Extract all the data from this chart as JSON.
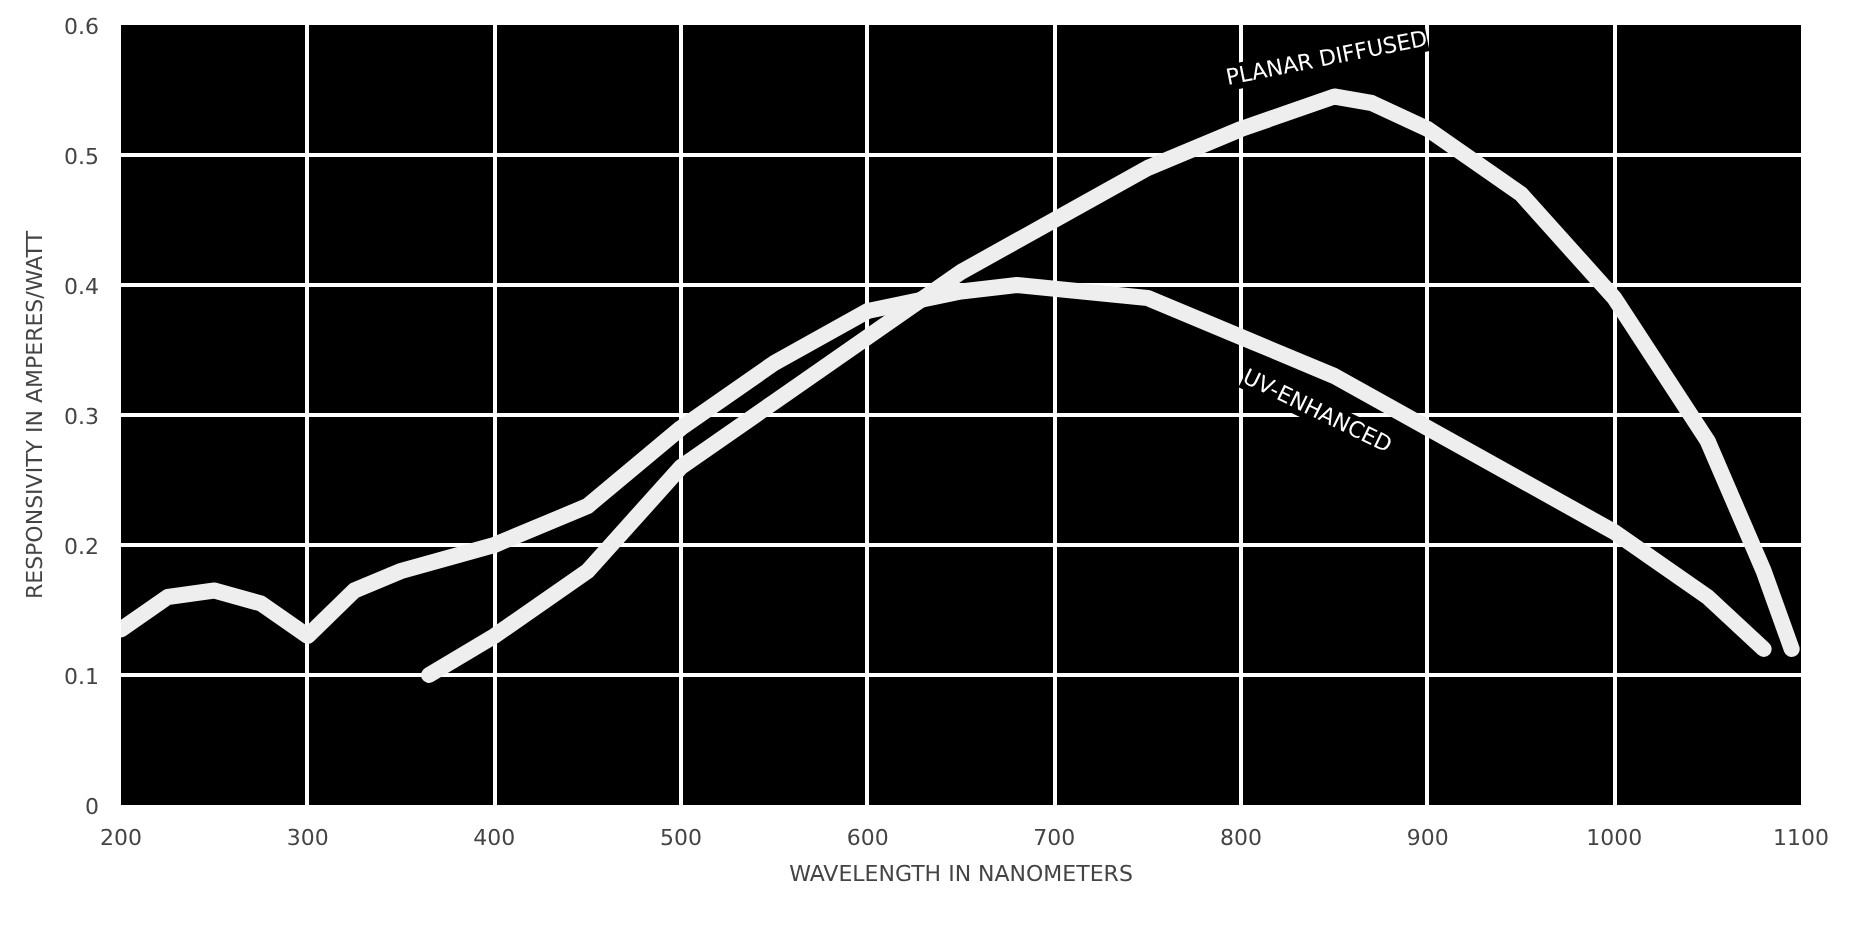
{
  "chart_data": {
    "type": "line",
    "xlabel": "WAVELENGTH IN NANOMETERS",
    "ylabel": "RESPONSIVITY IN AMPERES/WATT",
    "xlim": [
      200,
      1100
    ],
    "ylim": [
      0,
      0.6
    ],
    "xticks": [
      200,
      300,
      400,
      500,
      600,
      700,
      800,
      900,
      1000,
      1100
    ],
    "yticks": [
      0,
      0.1,
      0.2,
      0.3,
      0.4,
      0.5,
      0.6
    ],
    "grid": true,
    "series": [
      {
        "name": "UV-ENHANCED",
        "color": "#eeeeee",
        "x": [
          200,
          225,
          250,
          275,
          300,
          325,
          350,
          400,
          450,
          500,
          550,
          600,
          650,
          680,
          750,
          800,
          850,
          900,
          950,
          1000,
          1050,
          1080
        ],
        "values": [
          0.135,
          0.16,
          0.165,
          0.155,
          0.13,
          0.165,
          0.18,
          0.2,
          0.23,
          0.29,
          0.34,
          0.38,
          0.395,
          0.4,
          0.39,
          0.36,
          0.33,
          0.29,
          0.25,
          0.21,
          0.16,
          0.12
        ]
      },
      {
        "name": "PLANAR DIFFUSED",
        "color": "#eeeeee",
        "x": [
          365,
          400,
          450,
          500,
          550,
          600,
          650,
          700,
          750,
          800,
          850,
          870,
          900,
          950,
          1000,
          1050,
          1080,
          1095
        ],
        "values": [
          0.1,
          0.13,
          0.18,
          0.26,
          0.31,
          0.36,
          0.41,
          0.45,
          0.49,
          0.52,
          0.545,
          0.54,
          0.52,
          0.47,
          0.39,
          0.28,
          0.18,
          0.12
        ]
      }
    ]
  }
}
